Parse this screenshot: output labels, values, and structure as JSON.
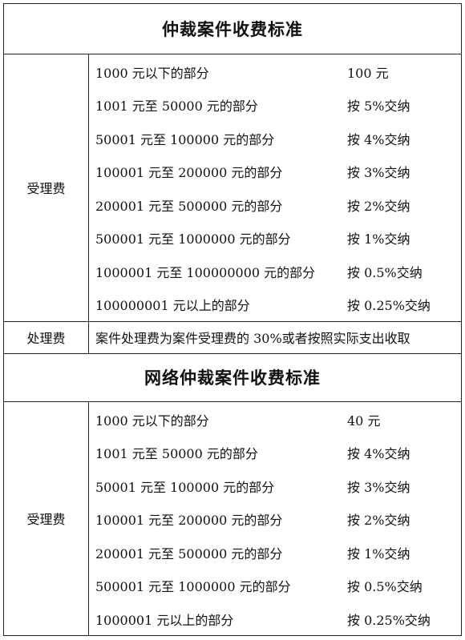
{
  "section1": {
    "title": "仲裁案件收费标准",
    "acceptance_label": "受理费",
    "rows": [
      {
        "range": "1000 元以下的部分",
        "rate": "100 元"
      },
      {
        "range": "1001 元至 50000 元的部分",
        "rate": "按 5%交纳"
      },
      {
        "range": "50001 元至 100000 元的部分",
        "rate": "按 4%交纳"
      },
      {
        "range": "100001 元至 200000 元的部分",
        "rate": "按  3%交纳"
      },
      {
        "range": "200001 元至 500000 元的部分",
        "rate": "按 2%交纳"
      },
      {
        "range": "500001 元至 1000000 元的部分",
        "rate": "按 1%交纳"
      },
      {
        "range": "1000001 元至 100000000 元的部分",
        "rate": "按 0.5%交纳"
      },
      {
        "range": "100000001 元以上的部分",
        "rate": "按 0.25%交纳"
      }
    ],
    "handling_label": "处理费",
    "handling_text": "案件处理费为案件受理费的 30%或者按照实际支出收取"
  },
  "section2": {
    "title": "网络仲裁案件收费标准",
    "acceptance_label": "受理费",
    "rows": [
      {
        "range": "1000 元以下的部分",
        "rate": "40 元"
      },
      {
        "range": "1001 元至 50000 元的部分",
        "rate": "按 4%交纳"
      },
      {
        "range": "50001 元至 100000 元的部分",
        "rate": "按 3%交纳"
      },
      {
        "range": "100001 元至 200000 元的部分",
        "rate": "按 2%交纳"
      },
      {
        "range": "200001 元至 500000 元的部分",
        "rate": "按 1%交纳"
      },
      {
        "range": "500001 元至 1000000 元的部分",
        "rate": "按 0.5%交纳"
      },
      {
        "range": "1000001 元以上的部分",
        "rate": "按 0.25%交纳"
      }
    ]
  }
}
